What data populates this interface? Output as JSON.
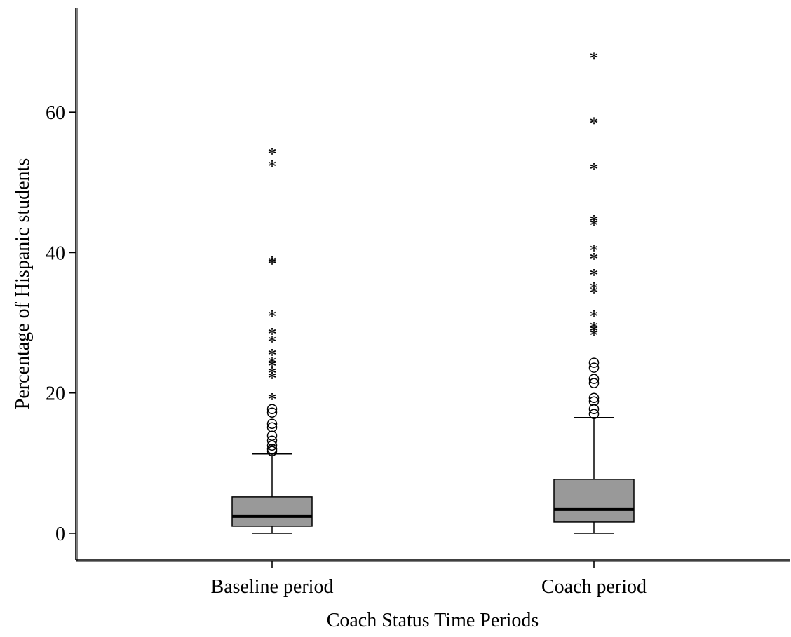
{
  "chart_data": {
    "type": "boxplot",
    "xlabel": "Coach Status Time Periods",
    "ylabel": "Percentage of Hispanic students",
    "ylim": [
      -3.8,
      74.8
    ],
    "yticks": [
      0,
      20,
      40,
      60
    ],
    "ytick_labels": [
      "0",
      "20",
      "40",
      "60"
    ],
    "grid": false,
    "box_color": "#999999",
    "categories": [
      "Baseline period",
      "Coach period"
    ],
    "boxes": [
      {
        "category": "Baseline period",
        "whisker_low": 0,
        "q1": 1.0,
        "median": 2.4,
        "q3": 5.2,
        "whisker_high": 11.3,
        "outliers_circle": [
          11.7,
          12.0,
          12.5,
          13.2,
          13.9,
          15.1,
          15.6,
          17.2,
          17.7
        ],
        "outliers_extreme": [
          19.2,
          22.2,
          22.9,
          23.9,
          24.4,
          25.5,
          27.4,
          28.5,
          31.0,
          38.5,
          38.7,
          52.4,
          54.2
        ]
      },
      {
        "category": "Coach period",
        "whisker_low": 0,
        "q1": 1.6,
        "median": 3.4,
        "q3": 7.7,
        "whisker_high": 16.5,
        "outliers_circle": [
          17.0,
          17.7,
          18.8,
          19.3,
          21.4,
          22.0,
          23.6,
          24.3
        ],
        "outliers_extreme": [
          28.3,
          28.9,
          29.4,
          31.0,
          34.4,
          35.0,
          36.9,
          39.2,
          40.4,
          44.0,
          44.6,
          52.0,
          58.5,
          67.8
        ]
      }
    ]
  }
}
